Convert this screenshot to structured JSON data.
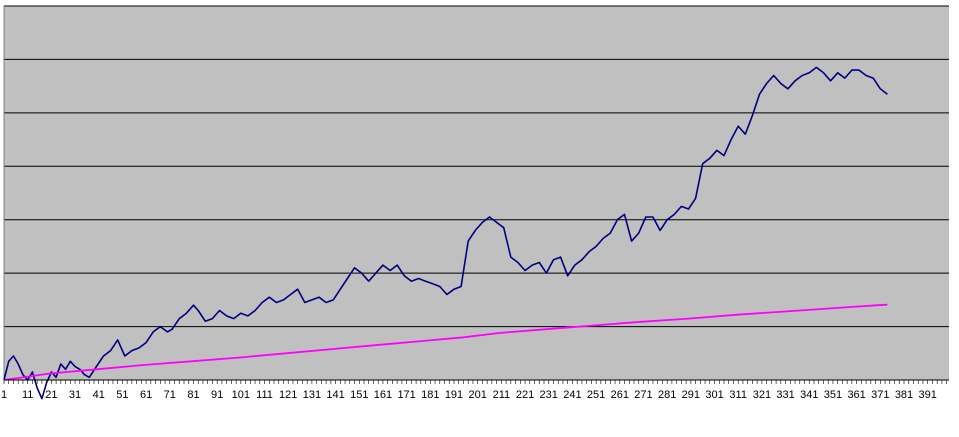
{
  "colors": {
    "plot_background": "#c0c0c0",
    "gridline": "#000000",
    "series_primary": "#000080",
    "series_secondary": "#ff00ff"
  },
  "chart_data": {
    "type": "line",
    "title": "",
    "xlabel": "",
    "ylabel": "",
    "grid": true,
    "legend": "none",
    "xlim": [
      1,
      400
    ],
    "ylim": [
      0,
      7
    ],
    "y_gridlines": [
      1,
      2,
      3,
      4,
      5,
      6,
      7
    ],
    "x_tick_labels": [
      "1",
      "11",
      "21",
      "31",
      "41",
      "51",
      "61",
      "71",
      "81",
      "91",
      "101",
      "111",
      "121",
      "131",
      "141",
      "151",
      "161",
      "171",
      "181",
      "191",
      "201",
      "211",
      "221",
      "231",
      "241",
      "251",
      "261",
      "271",
      "281",
      "291",
      "301",
      "311",
      "321",
      "331",
      "341",
      "351",
      "361",
      "371",
      "381",
      "391"
    ],
    "series": [
      {
        "color": "#000080",
        "x": [
          1,
          3,
          5,
          7,
          9,
          11,
          13,
          15,
          17,
          19,
          21,
          23,
          25,
          27,
          29,
          31,
          33,
          35,
          37,
          40,
          43,
          46,
          49,
          52,
          55,
          58,
          61,
          64,
          67,
          70,
          72,
          75,
          78,
          81,
          83,
          86,
          89,
          92,
          95,
          98,
          101,
          104,
          107,
          110,
          113,
          116,
          119,
          122,
          125,
          128,
          131,
          134,
          137,
          140,
          143,
          146,
          149,
          152,
          155,
          158,
          161,
          164,
          167,
          170,
          173,
          176,
          179,
          182,
          185,
          188,
          191,
          194,
          197,
          200,
          203,
          206,
          209,
          212,
          215,
          218,
          221,
          224,
          227,
          230,
          233,
          236,
          239,
          242,
          245,
          248,
          251,
          254,
          257,
          260,
          263,
          266,
          269,
          272,
          275,
          278,
          281,
          284,
          287,
          290,
          293,
          296,
          299,
          302,
          305,
          308,
          311,
          314,
          317,
          320,
          323,
          326,
          329,
          332,
          335,
          338,
          341,
          344,
          347,
          350,
          353,
          356,
          359,
          362,
          365,
          368,
          371,
          374
        ],
        "values": [
          0.0,
          0.35,
          0.45,
          0.3,
          0.1,
          0.0,
          0.15,
          -0.15,
          -0.35,
          -0.05,
          0.15,
          0.05,
          0.3,
          0.2,
          0.35,
          0.25,
          0.2,
          0.1,
          0.05,
          0.25,
          0.45,
          0.55,
          0.75,
          0.45,
          0.55,
          0.6,
          0.7,
          0.9,
          1.0,
          0.9,
          0.95,
          1.15,
          1.25,
          1.4,
          1.3,
          1.1,
          1.15,
          1.3,
          1.2,
          1.15,
          1.25,
          1.2,
          1.3,
          1.45,
          1.55,
          1.45,
          1.5,
          1.6,
          1.7,
          1.45,
          1.5,
          1.55,
          1.45,
          1.5,
          1.7,
          1.9,
          2.1,
          2.0,
          1.85,
          2.0,
          2.15,
          2.05,
          2.15,
          1.95,
          1.85,
          1.9,
          1.85,
          1.8,
          1.75,
          1.6,
          1.7,
          1.75,
          2.6,
          2.8,
          2.95,
          3.05,
          2.95,
          2.85,
          2.3,
          2.2,
          2.05,
          2.15,
          2.2,
          2.0,
          2.25,
          2.3,
          1.95,
          2.15,
          2.25,
          2.4,
          2.5,
          2.65,
          2.75,
          3.0,
          3.1,
          2.6,
          2.75,
          3.05,
          3.05,
          2.8,
          3.0,
          3.1,
          3.25,
          3.2,
          3.4,
          4.05,
          4.15,
          4.3,
          4.2,
          4.5,
          4.75,
          4.6,
          4.95,
          5.35,
          5.55,
          5.7,
          5.55,
          5.45,
          5.6,
          5.7,
          5.75,
          5.85,
          5.75,
          5.6,
          5.75,
          5.65,
          5.8,
          5.8,
          5.7,
          5.65,
          5.45,
          5.35
        ]
      },
      {
        "color": "#ff00ff",
        "x": [
          1,
          20,
          40,
          60,
          80,
          100,
          120,
          140,
          160,
          180,
          195,
          210,
          230,
          250,
          270,
          290,
          310,
          330,
          350,
          370,
          374
        ],
        "values": [
          0.0,
          0.12,
          0.2,
          0.28,
          0.35,
          0.42,
          0.5,
          0.58,
          0.66,
          0.74,
          0.8,
          0.88,
          0.95,
          1.02,
          1.09,
          1.15,
          1.22,
          1.28,
          1.34,
          1.4,
          1.41
        ]
      }
    ]
  }
}
